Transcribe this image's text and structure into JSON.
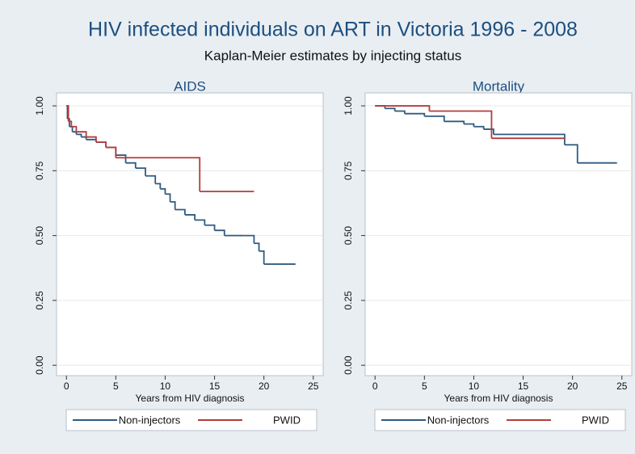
{
  "title": "HIV infected individuals on ART in Victoria 1996 - 2008",
  "subtitle": "Kaplan-Meier estimates by injecting status",
  "chart_data": [
    {
      "type": "line",
      "step": "post",
      "title": "AIDS",
      "xlabel": "Years from HIV diagnosis",
      "xlim": [
        -1,
        26
      ],
      "ylim": [
        -0.04,
        1.05
      ],
      "grid": true,
      "xticks": [
        0,
        5,
        10,
        15,
        20,
        25
      ],
      "yticks": [
        {
          "value": 0,
          "label": "0.00"
        },
        {
          "value": 0.25,
          "label": "0.25"
        },
        {
          "value": 0.5,
          "label": "0.50"
        },
        {
          "value": 0.75,
          "label": "0.75"
        },
        {
          "value": 1,
          "label": "1.00"
        }
      ],
      "series": [
        {
          "name": "Non-injectors",
          "color": "#2f5b80",
          "x": [
            0,
            0.1,
            0.3,
            0.6,
            1,
            1.5,
            2,
            3,
            4,
            5,
            6,
            7,
            8,
            9,
            9.5,
            10,
            10.5,
            11,
            12,
            13,
            14,
            15,
            16,
            17,
            18,
            19,
            19.5,
            20,
            23.2
          ],
          "values": [
            1,
            0.95,
            0.92,
            0.9,
            0.89,
            0.88,
            0.87,
            0.86,
            0.84,
            0.81,
            0.78,
            0.76,
            0.73,
            0.7,
            0.68,
            0.66,
            0.63,
            0.6,
            0.58,
            0.56,
            0.54,
            0.52,
            0.5,
            0.5,
            0.5,
            0.47,
            0.44,
            0.39,
            0.39
          ]
        },
        {
          "name": "PWID",
          "color": "#b43c3c",
          "x": [
            0,
            0.2,
            0.5,
            1,
            2,
            3,
            4,
            5,
            13.5,
            19
          ],
          "values": [
            1,
            0.94,
            0.92,
            0.9,
            0.88,
            0.86,
            0.84,
            0.8,
            0.67,
            0.67
          ]
        }
      ]
    },
    {
      "type": "line",
      "step": "post",
      "title": "Mortality",
      "xlabel": "Years from HIV diagnosis",
      "xlim": [
        -1,
        26
      ],
      "ylim": [
        -0.04,
        1.05
      ],
      "grid": true,
      "xticks": [
        0,
        5,
        10,
        15,
        20,
        25
      ],
      "yticks": [
        {
          "value": 0,
          "label": "0.00"
        },
        {
          "value": 0.25,
          "label": "0.25"
        },
        {
          "value": 0.5,
          "label": "0.50"
        },
        {
          "value": 0.75,
          "label": "0.75"
        },
        {
          "value": 1,
          "label": "1.00"
        }
      ],
      "series": [
        {
          "name": "Non-injectors",
          "color": "#2f5b80",
          "x": [
            0,
            1,
            2,
            3,
            5,
            7,
            9,
            10,
            11,
            12,
            15,
            19.2,
            20.5,
            24.5
          ],
          "values": [
            1,
            0.99,
            0.98,
            0.97,
            0.96,
            0.94,
            0.93,
            0.92,
            0.91,
            0.89,
            0.89,
            0.85,
            0.78,
            0.78
          ]
        },
        {
          "name": "PWID",
          "color": "#b43c3c",
          "x": [
            0,
            5.5,
            11.8,
            19.2
          ],
          "values": [
            1,
            0.98,
            0.875,
            0.875
          ]
        }
      ]
    }
  ]
}
